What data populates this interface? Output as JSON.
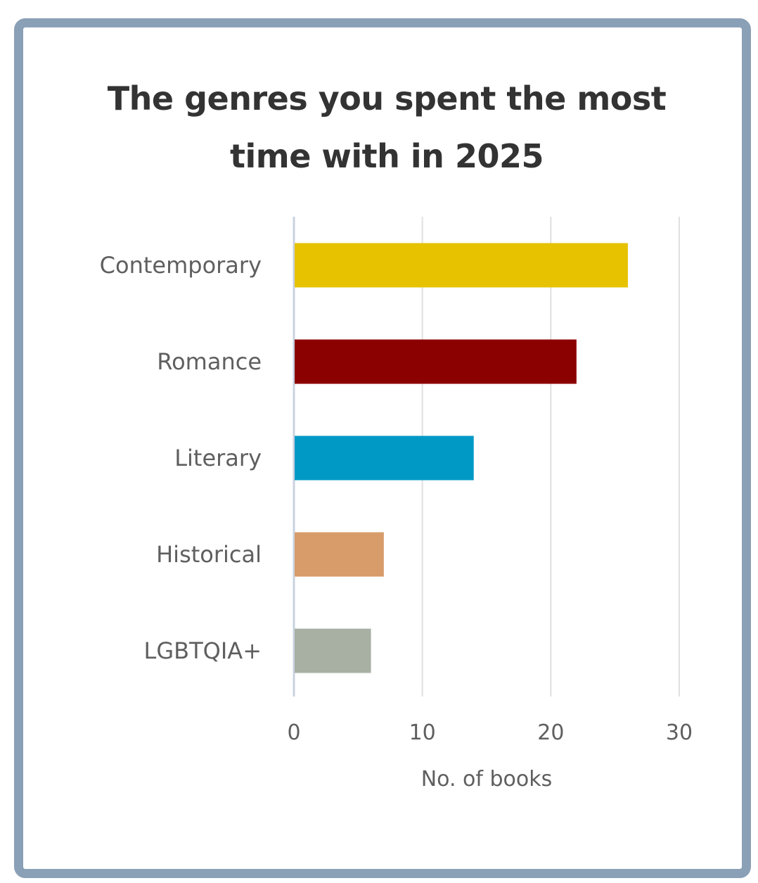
{
  "chart_data": {
    "type": "bar",
    "orientation": "horizontal",
    "title": "The genres you spent the most time with in 2025",
    "categories": [
      "Contemporary",
      "Romance",
      "Literary",
      "Historical",
      "LGBTQIA+"
    ],
    "values": [
      26,
      22,
      14,
      7,
      6
    ],
    "colors": [
      "#e6c200",
      "#8b0000",
      "#0099c6",
      "#d89c6a",
      "#a8b0a3"
    ],
    "xlabel": "No. of books",
    "ylabel": "",
    "xlim": [
      0,
      30
    ],
    "xticks": [
      0,
      10,
      20,
      30
    ],
    "grid": true,
    "legend": "none"
  }
}
